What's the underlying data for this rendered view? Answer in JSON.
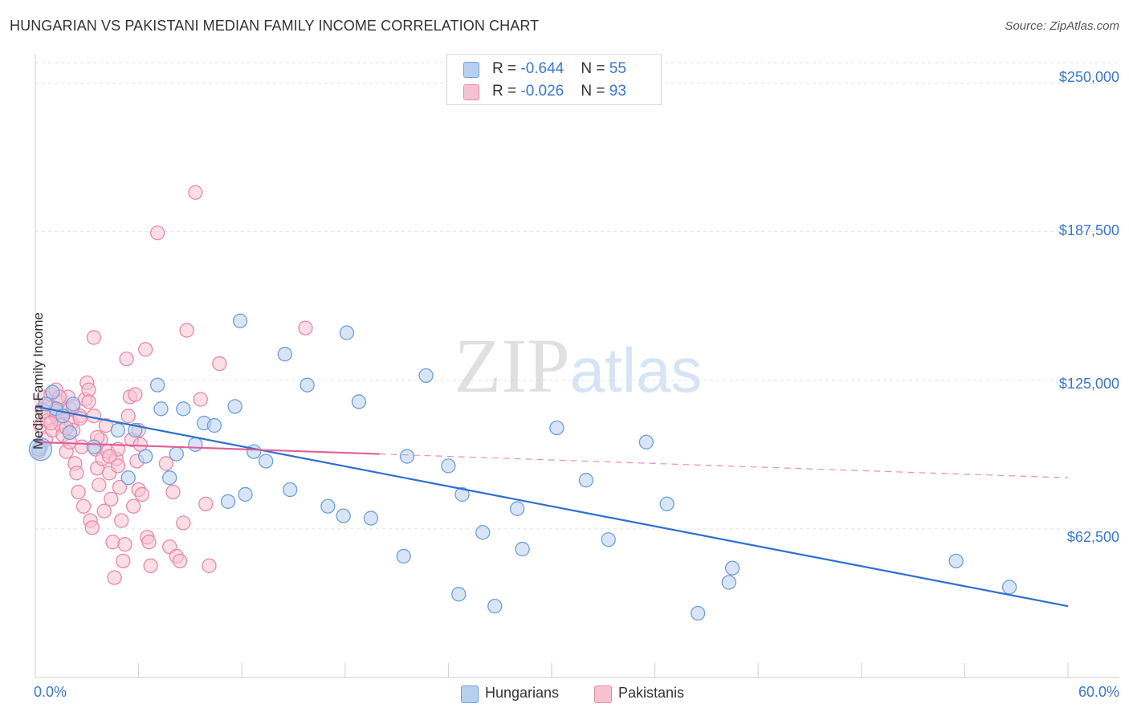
{
  "title": "HUNGARIAN VS PAKISTANI MEDIAN FAMILY INCOME CORRELATION CHART",
  "source": "Source: ZipAtlas.com",
  "watermark": "ZIPatlas",
  "colors": {
    "hungarian_fill": "#b8d0f0",
    "hungarian_stroke": "#6f9fd8",
    "hungarian_line": "#2d6fd1",
    "pakistani_fill": "#f6c2d2",
    "pakistani_stroke": "#e889a8",
    "pakistani_line": "#e0609a",
    "tick_text": "#3a78c9"
  },
  "legend_top": {
    "rows": [
      {
        "r_label": "R = ",
        "r_value": "-0.644",
        "n_label": "N = ",
        "n_value": "55"
      },
      {
        "r_label": "R = ",
        "r_value": "-0.026",
        "n_label": "N = ",
        "n_value": "93"
      }
    ]
  },
  "legend_bottom": [
    "Hungarians",
    "Pakistanis"
  ],
  "chart_data": {
    "type": "scatter",
    "title": "HUNGARIAN VS PAKISTANI MEDIAN FAMILY INCOME CORRELATION CHART",
    "xlabel": "",
    "ylabel": "Median Family Income",
    "xlim": [
      0,
      60
    ],
    "ylim": [
      0,
      262000
    ],
    "x_tick_labels": [
      "0.0%",
      "60.0%"
    ],
    "y_ticks": [
      62500,
      125000,
      187500,
      250000
    ],
    "y_tick_labels": [
      "$62,500",
      "$125,000",
      "$187,500",
      "$250,000"
    ],
    "grid": "horizontal dashed",
    "legend": "top-center and bottom",
    "series": [
      {
        "name": "Hungarians",
        "r": -0.644,
        "n": 55,
        "trend": {
          "x": [
            0,
            60
          ],
          "y": [
            114000,
            30000
          ],
          "dashed_from": null
        },
        "points": [
          [
            0.3,
            97000
          ],
          [
            1.0,
            120000
          ],
          [
            1.2,
            113000
          ],
          [
            1.6,
            110000
          ],
          [
            2.2,
            115000
          ],
          [
            3.4,
            97000
          ],
          [
            4.8,
            104000
          ],
          [
            5.4,
            84000
          ],
          [
            5.8,
            104000
          ],
          [
            6.4,
            93000
          ],
          [
            7.1,
            123000
          ],
          [
            7.3,
            113000
          ],
          [
            7.8,
            84000
          ],
          [
            8.2,
            94000
          ],
          [
            8.6,
            113000
          ],
          [
            9.3,
            98000
          ],
          [
            9.8,
            107000
          ],
          [
            10.4,
            106000
          ],
          [
            11.2,
            74000
          ],
          [
            11.6,
            114000
          ],
          [
            11.9,
            150000
          ],
          [
            12.2,
            77000
          ],
          [
            12.7,
            95000
          ],
          [
            13.4,
            91000
          ],
          [
            14.5,
            136000
          ],
          [
            14.8,
            79000
          ],
          [
            15.8,
            123000
          ],
          [
            17.0,
            72000
          ],
          [
            17.9,
            68000
          ],
          [
            18.1,
            145000
          ],
          [
            18.8,
            116000
          ],
          [
            19.5,
            67000
          ],
          [
            21.4,
            51000
          ],
          [
            21.6,
            93000
          ],
          [
            22.7,
            127000
          ],
          [
            24.0,
            89000
          ],
          [
            24.6,
            35000
          ],
          [
            24.8,
            77000
          ],
          [
            26.0,
            61000
          ],
          [
            26.7,
            30000
          ],
          [
            28.0,
            71000
          ],
          [
            28.3,
            54000
          ],
          [
            30.3,
            105000
          ],
          [
            32.0,
            83000
          ],
          [
            33.3,
            58000
          ],
          [
            35.5,
            99000
          ],
          [
            36.7,
            73000
          ],
          [
            38.5,
            27000
          ],
          [
            40.3,
            40000
          ],
          [
            40.5,
            46000
          ],
          [
            53.5,
            49000
          ],
          [
            56.6,
            38000
          ],
          [
            0.2,
            96000
          ],
          [
            0.6,
            115000
          ],
          [
            2.0,
            103000
          ]
        ]
      },
      {
        "name": "Pakistanis",
        "r": -0.026,
        "n": 93,
        "trend": {
          "x": [
            0,
            60
          ],
          "y": [
            99000,
            84000
          ],
          "dashed_from": 20
        },
        "points": [
          [
            0.2,
            95000
          ],
          [
            0.3,
            106000
          ],
          [
            0.4,
            113000
          ],
          [
            0.5,
            118000
          ],
          [
            0.6,
            100000
          ],
          [
            0.7,
            108000
          ],
          [
            0.8,
            115000
          ],
          [
            0.9,
            119000
          ],
          [
            1.0,
            104000
          ],
          [
            1.1,
            111000
          ],
          [
            1.2,
            121000
          ],
          [
            1.3,
            109000
          ],
          [
            1.4,
            116000
          ],
          [
            1.5,
            106000
          ],
          [
            1.6,
            102000
          ],
          [
            1.7,
            112000
          ],
          [
            1.8,
            95000
          ],
          [
            1.9,
            118000
          ],
          [
            2.0,
            113000
          ],
          [
            2.1,
            107000
          ],
          [
            2.2,
            104000
          ],
          [
            2.3,
            90000
          ],
          [
            2.4,
            86000
          ],
          [
            2.5,
            78000
          ],
          [
            2.6,
            110000
          ],
          [
            2.7,
            97000
          ],
          [
            2.8,
            72000
          ],
          [
            2.9,
            117000
          ],
          [
            3.0,
            124000
          ],
          [
            3.1,
            121000
          ],
          [
            3.2,
            66000
          ],
          [
            3.3,
            63000
          ],
          [
            3.4,
            143000
          ],
          [
            3.5,
            96000
          ],
          [
            3.6,
            88000
          ],
          [
            3.7,
            81000
          ],
          [
            3.8,
            100000
          ],
          [
            3.9,
            92000
          ],
          [
            4.0,
            70000
          ],
          [
            4.1,
            106000
          ],
          [
            4.2,
            95000
          ],
          [
            4.3,
            86000
          ],
          [
            4.4,
            75000
          ],
          [
            4.5,
            57000
          ],
          [
            4.6,
            42000
          ],
          [
            4.7,
            92000
          ],
          [
            4.8,
            89000
          ],
          [
            4.9,
            80000
          ],
          [
            5.0,
            66000
          ],
          [
            5.1,
            49000
          ],
          [
            5.2,
            56000
          ],
          [
            5.3,
            134000
          ],
          [
            5.4,
            110000
          ],
          [
            5.5,
            118000
          ],
          [
            5.6,
            100000
          ],
          [
            5.7,
            72000
          ],
          [
            5.8,
            119000
          ],
          [
            5.9,
            91000
          ],
          [
            6.0,
            79000
          ],
          [
            6.1,
            98000
          ],
          [
            6.2,
            77000
          ],
          [
            6.4,
            138000
          ],
          [
            6.5,
            59000
          ],
          [
            6.6,
            57000
          ],
          [
            6.7,
            47000
          ],
          [
            7.1,
            187000
          ],
          [
            7.6,
            90000
          ],
          [
            7.8,
            55000
          ],
          [
            8.0,
            78000
          ],
          [
            8.2,
            51000
          ],
          [
            8.4,
            49000
          ],
          [
            8.6,
            65000
          ],
          [
            8.8,
            146000
          ],
          [
            9.3,
            204000
          ],
          [
            9.6,
            117000
          ],
          [
            9.9,
            73000
          ],
          [
            10.1,
            47000
          ],
          [
            10.7,
            132000
          ],
          [
            15.7,
            147000
          ],
          [
            1.2,
            112000
          ],
          [
            2.2,
            114000
          ],
          [
            0.9,
            107000
          ],
          [
            3.6,
            101000
          ],
          [
            4.8,
            96000
          ],
          [
            1.4,
            118000
          ],
          [
            2.6,
            109000
          ],
          [
            3.1,
            116000
          ],
          [
            0.5,
            112000
          ],
          [
            1.8,
            105000
          ],
          [
            6.0,
            104000
          ],
          [
            2.0,
            99000
          ],
          [
            4.3,
            93000
          ],
          [
            3.4,
            110000
          ]
        ]
      }
    ]
  }
}
